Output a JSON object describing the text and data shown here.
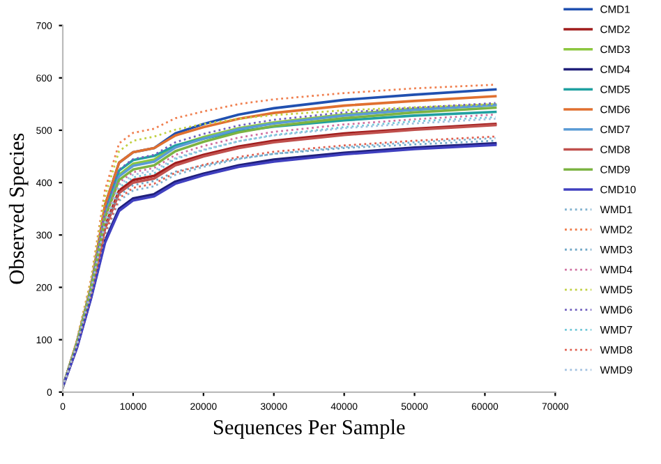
{
  "chart_data": {
    "type": "line",
    "xlabel": "Sequences Per Sample",
    "ylabel": "Observed Species",
    "x": [
      0,
      2000,
      4000,
      6000,
      8000,
      10000,
      13000,
      16000,
      20000,
      25000,
      30000,
      40000,
      50000,
      61500
    ],
    "xlim": [
      0,
      70000
    ],
    "xticks": [
      0,
      10000,
      20000,
      30000,
      40000,
      50000,
      60000,
      70000
    ],
    "ylim": [
      0,
      700
    ],
    "yticks": [
      0,
      100,
      200,
      300,
      400,
      500,
      600,
      700
    ],
    "grid": false,
    "legend": "right",
    "marker": "none",
    "series": [
      {
        "name": "CMD1",
        "color": "#2050b0",
        "line_style": "solid",
        "values": [
          10,
          95,
          200,
          357,
          438,
          458,
          466,
          494,
          512,
          530,
          542,
          558,
          568,
          578
        ]
      },
      {
        "name": "CMD2",
        "color": "#a01c1c",
        "line_style": "solid",
        "values": [
          10,
          90,
          190,
          316,
          385,
          405,
          413,
          437,
          453,
          469,
          480,
          494,
          503,
          512
        ]
      },
      {
        "name": "CMD3",
        "color": "#8cc63f",
        "line_style": "solid",
        "values": [
          10,
          94,
          199,
          340,
          415,
          436,
          444,
          470,
          487,
          504,
          515,
          530,
          541,
          549
        ]
      },
      {
        "name": "CMD4",
        "color": "#1f1f7a",
        "line_style": "solid",
        "values": [
          10,
          85,
          180,
          289,
          350,
          370,
          378,
          402,
          417,
          433,
          444,
          457,
          467,
          475
        ]
      },
      {
        "name": "CMD5",
        "color": "#20a0a0",
        "line_style": "solid",
        "values": [
          10,
          93,
          198,
          346,
          423,
          443,
          451,
          471,
          484,
          498,
          507,
          519,
          528,
          535
        ]
      },
      {
        "name": "CMD6",
        "color": "#e07030",
        "line_style": "solid",
        "values": [
          10,
          95,
          200,
          357,
          438,
          458,
          466,
          490,
          506,
          522,
          533,
          547,
          556,
          565
        ]
      },
      {
        "name": "CMD7",
        "color": "#5b9bd5",
        "line_style": "solid",
        "values": [
          10,
          93,
          196,
          337,
          412,
          432,
          440,
          467,
          484,
          502,
          513,
          528,
          539,
          548
        ]
      },
      {
        "name": "CMD8",
        "color": "#c0504d",
        "line_style": "solid",
        "values": [
          10,
          90,
          190,
          312,
          380,
          400,
          408,
          433,
          450,
          466,
          477,
          491,
          501,
          510
        ]
      },
      {
        "name": "CMD9",
        "color": "#7cb342",
        "line_style": "solid",
        "values": [
          10,
          92,
          194,
          332,
          405,
          425,
          433,
          460,
          478,
          496,
          508,
          523,
          534,
          543
        ]
      },
      {
        "name": "CMD10",
        "color": "#4040c0",
        "line_style": "solid",
        "values": [
          10,
          84,
          178,
          285,
          346,
          366,
          374,
          398,
          414,
          430,
          440,
          454,
          464,
          472
        ]
      },
      {
        "name": "WMD1",
        "color": "#7fb2d0",
        "line_style": "dotted",
        "values": [
          10,
          88,
          185,
          300,
          365,
          385,
          393,
          415,
          430,
          445,
          455,
          468,
          477,
          485
        ]
      },
      {
        "name": "WMD2",
        "color": "#f08050",
        "line_style": "dotted",
        "values": [
          10,
          100,
          215,
          386,
          475,
          495,
          503,
          523,
          536,
          550,
          559,
          571,
          580,
          587
        ]
      },
      {
        "name": "WMD3",
        "color": "#6fa8c8",
        "line_style": "dotted",
        "values": [
          10,
          89,
          188,
          308,
          375,
          395,
          403,
          421,
          433,
          446,
          455,
          466,
          473,
          480
        ]
      },
      {
        "name": "WMD4",
        "color": "#d070a0",
        "line_style": "dotted",
        "values": [
          10,
          91,
          193,
          328,
          400,
          420,
          428,
          453,
          470,
          486,
          497,
          511,
          521,
          530
        ]
      },
      {
        "name": "WMD5",
        "color": "#c0d040",
        "line_style": "dotted",
        "values": [
          10,
          98,
          210,
          374,
          460,
          480,
          488,
          501,
          512,
          522,
          529,
          538,
          544,
          550
        ]
      },
      {
        "name": "WMD6",
        "color": "#7060c0",
        "line_style": "dotted",
        "values": [
          10,
          93,
          198,
          347,
          425,
          445,
          453,
          477,
          493,
          509,
          520,
          534,
          543,
          552
        ]
      },
      {
        "name": "WMD7",
        "color": "#70c8d8",
        "line_style": "dotted",
        "values": [
          10,
          90,
          192,
          320,
          390,
          410,
          418,
          445,
          462,
          479,
          491,
          506,
          517,
          525
        ]
      },
      {
        "name": "WMD8",
        "color": "#e06050",
        "line_style": "dotted",
        "values": [
          10,
          88,
          186,
          304,
          370,
          390,
          398,
          419,
          434,
          449,
          459,
          471,
          480,
          488
        ]
      },
      {
        "name": "WMD9",
        "color": "#a0c0e0",
        "line_style": "dotted",
        "values": [
          10,
          90,
          192,
          324,
          395,
          415,
          423,
          447,
          463,
          479,
          490,
          504,
          513,
          522
        ]
      }
    ]
  }
}
